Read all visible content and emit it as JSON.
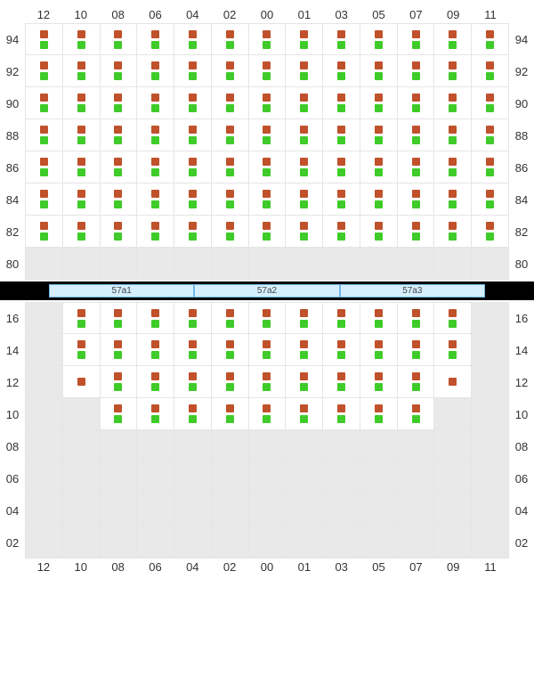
{
  "layout": {
    "columns": [
      "12",
      "10",
      "08",
      "06",
      "04",
      "02",
      "00",
      "01",
      "03",
      "05",
      "07",
      "09",
      "11"
    ],
    "ind_colors": {
      "a": "#c0512b",
      "b": "#3fcb29"
    },
    "cell_border": "#e5e5e5",
    "inactive_bg": "#e9e9e9",
    "active_bg": "#ffffff",
    "label_color": "#333333"
  },
  "top": {
    "rows": [
      "94",
      "92",
      "90",
      "88",
      "86",
      "84",
      "82",
      "80"
    ],
    "states": [
      [
        "ab",
        "ab",
        "ab",
        "ab",
        "ab",
        "ab",
        "ab",
        "ab",
        "ab",
        "ab",
        "ab",
        "ab",
        "ab"
      ],
      [
        "ab",
        "ab",
        "ab",
        "ab",
        "ab",
        "ab",
        "ab",
        "ab",
        "ab",
        "ab",
        "ab",
        "ab",
        "ab"
      ],
      [
        "ab",
        "ab",
        "ab",
        "ab",
        "ab",
        "ab",
        "ab",
        "ab",
        "ab",
        "ab",
        "ab",
        "ab",
        "ab"
      ],
      [
        "ab",
        "ab",
        "ab",
        "ab",
        "ab",
        "ab",
        "ab",
        "ab",
        "ab",
        "ab",
        "ab",
        "ab",
        "ab"
      ],
      [
        "ab",
        "ab",
        "ab",
        "ab",
        "ab",
        "ab",
        "ab",
        "ab",
        "ab",
        "ab",
        "ab",
        "ab",
        "ab"
      ],
      [
        "ab",
        "ab",
        "ab",
        "ab",
        "ab",
        "ab",
        "ab",
        "ab",
        "ab",
        "ab",
        "ab",
        "ab",
        "ab"
      ],
      [
        "ab",
        "ab",
        "ab",
        "ab",
        "ab",
        "ab",
        "ab",
        "ab",
        "ab",
        "ab",
        "ab",
        "ab",
        "ab"
      ],
      [
        "x",
        "x",
        "x",
        "x",
        "x",
        "x",
        "x",
        "x",
        "x",
        "x",
        "x",
        "x",
        "x"
      ]
    ]
  },
  "divider": {
    "tabs": [
      "57a1",
      "57a2",
      "57a3"
    ],
    "tab_bg": "#d5efff",
    "tab_border": "#6eb8e8"
  },
  "bottom": {
    "rows": [
      "16",
      "14",
      "12",
      "10",
      "08",
      "06",
      "04",
      "02"
    ],
    "states": [
      [
        "x",
        "ab",
        "ab",
        "ab",
        "ab",
        "ab",
        "ab",
        "ab",
        "ab",
        "ab",
        "ab",
        "ab",
        "x"
      ],
      [
        "x",
        "ab",
        "ab",
        "ab",
        "ab",
        "ab",
        "ab",
        "ab",
        "ab",
        "ab",
        "ab",
        "ab",
        "x"
      ],
      [
        "x",
        "a",
        "ab",
        "ab",
        "ab",
        "ab",
        "ab",
        "ab",
        "ab",
        "ab",
        "ab",
        "a",
        "x"
      ],
      [
        "x",
        "x",
        "ab",
        "ab",
        "ab",
        "ab",
        "ab",
        "ab",
        "ab",
        "ab",
        "ab",
        "x",
        "x"
      ],
      [
        "x",
        "x",
        "x",
        "x",
        "x",
        "x",
        "x",
        "x",
        "x",
        "x",
        "x",
        "x",
        "x"
      ],
      [
        "x",
        "x",
        "x",
        "x",
        "x",
        "x",
        "x",
        "x",
        "x",
        "x",
        "x",
        "x",
        "x"
      ],
      [
        "x",
        "x",
        "x",
        "x",
        "x",
        "x",
        "x",
        "x",
        "x",
        "x",
        "x",
        "x",
        "x"
      ],
      [
        "x",
        "x",
        "x",
        "x",
        "x",
        "x",
        "x",
        "x",
        "x",
        "x",
        "x",
        "x",
        "x"
      ]
    ]
  }
}
